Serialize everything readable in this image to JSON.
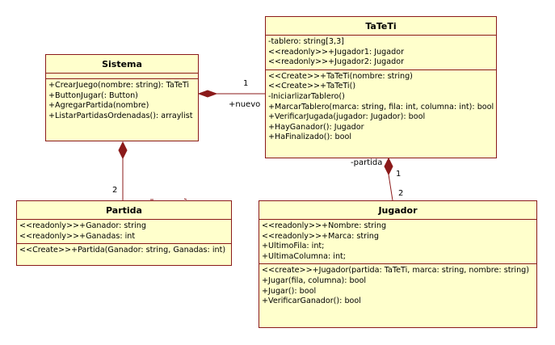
{
  "colors": {
    "fill": "#ffffcc",
    "border": "#8b1a1a",
    "line": "#8b1a1a"
  },
  "classes": {
    "sistema": {
      "name": "Sistema",
      "attributes": [],
      "operations": [
        "+CrearJuego(nombre: string): TaTeTi",
        "+ButtonJugar(: Button)",
        "+AgregarPartida(nombre)",
        "+ListarPartidasOrdenadas(): arraylist"
      ]
    },
    "tateti": {
      "name": "TaTeTi",
      "attributes": [
        "-tablero: string[3,3]",
        "<<readonly>>+Jugador1: Jugador",
        "<<readonly>>+Jugador2: Jugador"
      ],
      "operations": [
        "<<Create>>+TaTeTi(nombre: string)",
        "<<Create>>+TaTeTi()",
        "-IniciarlizarTablero()",
        "+MarcarTablero(marca: string, fila: int, columna: int): bool",
        "+VerificarJugada(jugador: Jugador): bool",
        "+HayGanador(): Jugador",
        "+HaFinalizado(): bool"
      ]
    },
    "partida": {
      "name": "Partida",
      "attributes": [
        "<<readonly>>+Ganador: string",
        "<<readonly>>+Ganadas: int"
      ],
      "operations": [
        "<<Create>>+Partida(Ganador: string, Ganadas: int)"
      ]
    },
    "jugador": {
      "name": "Jugador",
      "attributes": [
        "<<readonly>>+Nombre: string",
        "<<readonly>>+Marca: string",
        "+UltimoFila: int;",
        "+UltimaColumna: int;"
      ],
      "operations": [
        "<<create>>+Jugador(partida: TaTeTi, marca: string, nombre: string)",
        "+Jugar(fila, columna): bool",
        "+Jugar(): bool",
        "+VerificarGanador(): bool"
      ]
    }
  },
  "associations": {
    "sistema_tateti": {
      "multiplicity": "1",
      "role": "+nuevo"
    },
    "sistema_partida": {
      "multiplicity": "2"
    },
    "tateti_jugador": {
      "role": "-partida",
      "multiplicity_top": "1",
      "multiplicity_bottom": "2"
    }
  }
}
